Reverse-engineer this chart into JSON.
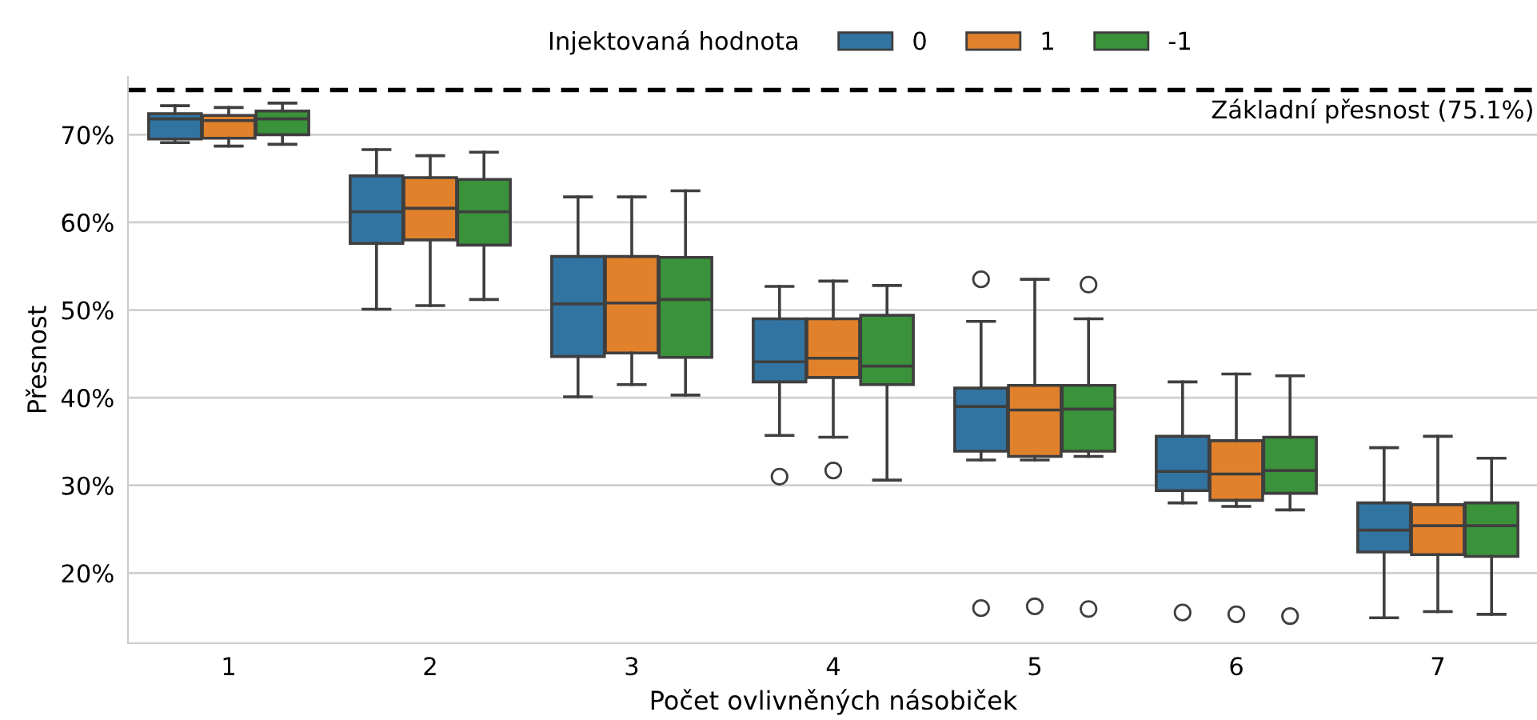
{
  "chart_data": {
    "type": "box",
    "xlabel": "Počet ovlivněných násobiček",
    "ylabel": "Přesnost",
    "legend_title": "Injektovaná hodnota",
    "legend": "top",
    "grid": "y",
    "categories": [
      "1",
      "2",
      "3",
      "4",
      "5",
      "6",
      "7"
    ],
    "ylim": [
      12.0,
      76.6
    ],
    "yticks": [
      {
        "value": 20,
        "label": "20%"
      },
      {
        "value": 30,
        "label": "30%"
      },
      {
        "value": 40,
        "label": "40%"
      },
      {
        "value": 50,
        "label": "50%"
      },
      {
        "value": 60,
        "label": "60%"
      },
      {
        "value": 70,
        "label": "70%"
      }
    ],
    "ref_lines": [
      {
        "axis": "y",
        "value": 75.1,
        "label": "Základní přesnost (75.1%)",
        "color": "#000000",
        "line_style": "dashed"
      }
    ],
    "series": [
      {
        "name": "0",
        "color": "#3274a1",
        "boxes": [
          {
            "low": 69.1,
            "q1": 69.5,
            "median": 71.8,
            "q3": 72.4,
            "high": 73.3
          },
          {
            "low": 50.1,
            "q1": 57.6,
            "median": 61.2,
            "q3": 65.3,
            "high": 68.3
          },
          {
            "low": 40.1,
            "q1": 44.7,
            "median": 50.7,
            "q3": 56.1,
            "high": 62.9
          },
          {
            "low": 35.7,
            "q1": 41.8,
            "median": 44.1,
            "q3": 49.0,
            "high": 52.7,
            "outliers": [
              31.0
            ]
          },
          {
            "low": 32.9,
            "q1": 33.9,
            "median": 39.0,
            "q3": 41.1,
            "high": 48.7,
            "outliers": [
              53.5,
              16.0
            ]
          },
          {
            "low": 28.0,
            "q1": 29.4,
            "median": 31.6,
            "q3": 35.6,
            "high": 41.8,
            "outliers": [
              15.5
            ]
          },
          {
            "low": 14.9,
            "q1": 22.4,
            "median": 24.9,
            "q3": 28.0,
            "high": 34.3
          }
        ]
      },
      {
        "name": "1",
        "color": "#e1812c",
        "boxes": [
          {
            "low": 68.7,
            "q1": 69.6,
            "median": 71.6,
            "q3": 72.2,
            "high": 73.1
          },
          {
            "low": 50.5,
            "q1": 58.0,
            "median": 61.6,
            "q3": 65.1,
            "high": 67.6
          },
          {
            "low": 41.5,
            "q1": 45.1,
            "median": 50.8,
            "q3": 56.1,
            "high": 62.9
          },
          {
            "low": 35.5,
            "q1": 42.3,
            "median": 44.5,
            "q3": 49.0,
            "high": 53.3,
            "outliers": [
              31.7
            ]
          },
          {
            "low": 32.9,
            "q1": 33.3,
            "median": 38.6,
            "q3": 41.4,
            "high": 53.5,
            "outliers": [
              16.2
            ]
          },
          {
            "low": 27.6,
            "q1": 28.3,
            "median": 31.3,
            "q3": 35.1,
            "high": 42.7,
            "outliers": [
              15.3
            ]
          },
          {
            "low": 15.6,
            "q1": 22.1,
            "median": 25.4,
            "q3": 27.8,
            "high": 35.6
          }
        ]
      },
      {
        "name": "-1",
        "color": "#3a923a",
        "boxes": [
          {
            "low": 68.9,
            "q1": 70.0,
            "median": 71.8,
            "q3": 72.7,
            "high": 73.6
          },
          {
            "low": 51.2,
            "q1": 57.4,
            "median": 61.2,
            "q3": 64.9,
            "high": 68.0
          },
          {
            "low": 40.3,
            "q1": 44.6,
            "median": 51.2,
            "q3": 56.0,
            "high": 63.6
          },
          {
            "low": 30.6,
            "q1": 41.5,
            "median": 43.6,
            "q3": 49.4,
            "high": 52.8
          },
          {
            "low": 33.3,
            "q1": 33.9,
            "median": 38.7,
            "q3": 41.4,
            "high": 49.0,
            "outliers": [
              52.9,
              15.9
            ]
          },
          {
            "low": 27.2,
            "q1": 29.1,
            "median": 31.7,
            "q3": 35.5,
            "high": 42.5,
            "outliers": [
              15.1
            ]
          },
          {
            "low": 15.3,
            "q1": 21.9,
            "median": 25.4,
            "q3": 28.0,
            "high": 33.1
          }
        ]
      }
    ]
  }
}
